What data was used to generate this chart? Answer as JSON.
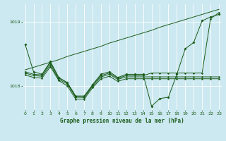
{
  "title": "Graphe pression niveau de la mer (hPa)",
  "bg_color": "#cce8f0",
  "grid_color": "#ffffff",
  "line_color": "#1a5c1a",
  "ylim": [
    1017.62,
    1019.28
  ],
  "yticks": [
    1018.0,
    1019.0
  ],
  "xlim": [
    -0.3,
    23.3
  ],
  "xticks": [
    0,
    1,
    2,
    3,
    4,
    5,
    6,
    7,
    8,
    9,
    10,
    11,
    12,
    13,
    14,
    15,
    16,
    17,
    18,
    19,
    20,
    21,
    22,
    23
  ],
  "upper_line": [
    1018.25,
    1018.29,
    1018.33,
    1018.37,
    1018.41,
    1018.46,
    1018.5,
    1018.54,
    1018.58,
    1018.62,
    1018.67,
    1018.71,
    1018.75,
    1018.79,
    1018.83,
    1018.87,
    1018.92,
    1018.96,
    1019.0,
    1019.04,
    1019.08,
    1019.12,
    1019.16,
    1019.2
  ],
  "main_line": [
    1018.65,
    1018.22,
    1018.18,
    1018.38,
    1018.13,
    1018.05,
    1017.83,
    1017.82,
    1018.02,
    1018.18,
    1018.22,
    1018.13,
    1018.18,
    1018.18,
    1018.18,
    1017.68,
    1017.8,
    1017.82,
    1018.18,
    1018.58,
    1018.68,
    1019.02,
    1019.08,
    1019.12
  ],
  "mid_line1": [
    1018.2,
    1018.16,
    1018.15,
    1018.33,
    1018.1,
    1018.03,
    1017.82,
    1017.82,
    1017.99,
    1018.14,
    1018.18,
    1018.1,
    1018.14,
    1018.14,
    1018.14,
    1018.14,
    1018.14,
    1018.14,
    1018.14,
    1018.14,
    1018.14,
    1018.14,
    1018.14,
    1018.14
  ],
  "mid_line2": [
    1018.17,
    1018.13,
    1018.12,
    1018.3,
    1018.08,
    1018.0,
    1017.79,
    1017.79,
    1017.97,
    1018.11,
    1018.15,
    1018.07,
    1018.11,
    1018.11,
    1018.11,
    1018.11,
    1018.11,
    1018.11,
    1018.11,
    1018.11,
    1018.11,
    1018.11,
    1018.11,
    1018.11
  ],
  "mid_line3": [
    1018.22,
    1018.18,
    1018.17,
    1018.36,
    1018.12,
    1018.05,
    1017.84,
    1017.84,
    1018.01,
    1018.16,
    1018.2,
    1018.12,
    1018.16,
    1018.16,
    1018.16,
    1018.2,
    1018.2,
    1018.2,
    1018.2,
    1018.2,
    1018.2,
    1018.2,
    1019.05,
    1019.15
  ]
}
